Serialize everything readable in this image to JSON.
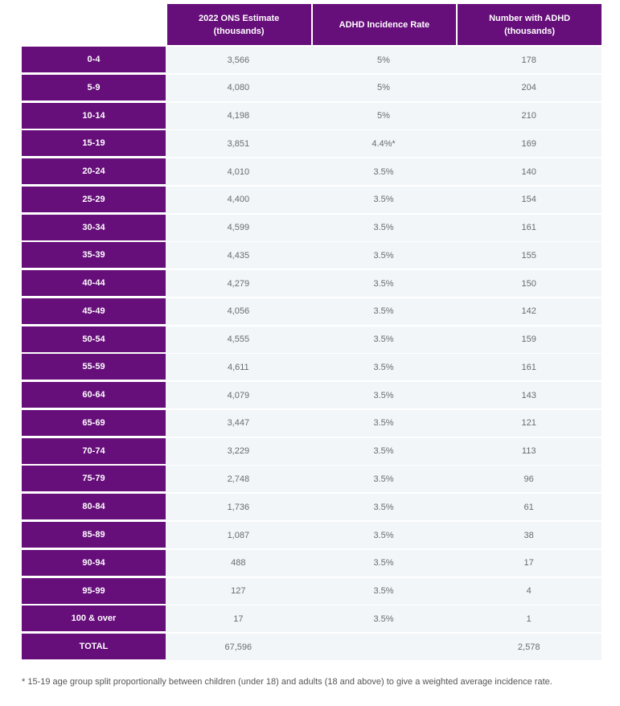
{
  "table": {
    "headers": [
      "2022 ONS Estimate\n(thousands)",
      "ADHD Incidence Rate",
      "Number with ADHD\n(thousands)"
    ],
    "rows": [
      {
        "age": "0-4",
        "estimate": "3,566",
        "rate": "5%",
        "adhd": "178"
      },
      {
        "age": "5-9",
        "estimate": "4,080",
        "rate": "5%",
        "adhd": "204"
      },
      {
        "age": "10-14",
        "estimate": "4,198",
        "rate": "5%",
        "adhd": "210"
      },
      {
        "age": "15-19",
        "estimate": "3,851",
        "rate": "4.4%*",
        "adhd": "169"
      },
      {
        "age": "20-24",
        "estimate": "4,010",
        "rate": "3.5%",
        "adhd": "140"
      },
      {
        "age": "25-29",
        "estimate": "4,400",
        "rate": "3.5%",
        "adhd": "154"
      },
      {
        "age": "30-34",
        "estimate": "4,599",
        "rate": "3.5%",
        "adhd": "161"
      },
      {
        "age": "35-39",
        "estimate": "4,435",
        "rate": "3.5%",
        "adhd": "155"
      },
      {
        "age": "40-44",
        "estimate": "4,279",
        "rate": "3.5%",
        "adhd": "150"
      },
      {
        "age": "45-49",
        "estimate": "4,056",
        "rate": "3.5%",
        "adhd": "142"
      },
      {
        "age": "50-54",
        "estimate": "4,555",
        "rate": "3.5%",
        "adhd": "159"
      },
      {
        "age": "55-59",
        "estimate": "4,611",
        "rate": "3.5%",
        "adhd": "161"
      },
      {
        "age": "60-64",
        "estimate": "4,079",
        "rate": "3.5%",
        "adhd": "143"
      },
      {
        "age": "65-69",
        "estimate": "3,447",
        "rate": "3.5%",
        "adhd": "121"
      },
      {
        "age": "70-74",
        "estimate": "3,229",
        "rate": "3.5%",
        "adhd": "113"
      },
      {
        "age": "75-79",
        "estimate": "2,748",
        "rate": "3.5%",
        "adhd": "96"
      },
      {
        "age": "80-84",
        "estimate": "1,736",
        "rate": "3.5%",
        "adhd": "61"
      },
      {
        "age": "85-89",
        "estimate": "1,087",
        "rate": "3.5%",
        "adhd": "38"
      },
      {
        "age": "90-94",
        "estimate": "488",
        "rate": "3.5%",
        "adhd": "17"
      },
      {
        "age": "95-99",
        "estimate": "127",
        "rate": "3.5%",
        "adhd": "4"
      },
      {
        "age": "100 & over",
        "estimate": "17",
        "rate": "3.5%",
        "adhd": "1"
      },
      {
        "age": "TOTAL",
        "estimate": "67,596",
        "rate": "",
        "adhd": "2,578"
      }
    ]
  },
  "footnote": "* 15-19 age group split proportionally between children (under 18) and adults (18 and above) to give a weighted average incidence rate.",
  "colors": {
    "header_bg": "#660e7a",
    "row_bg": "#f2f6f9",
    "cell_text": "#6b6b6b"
  }
}
